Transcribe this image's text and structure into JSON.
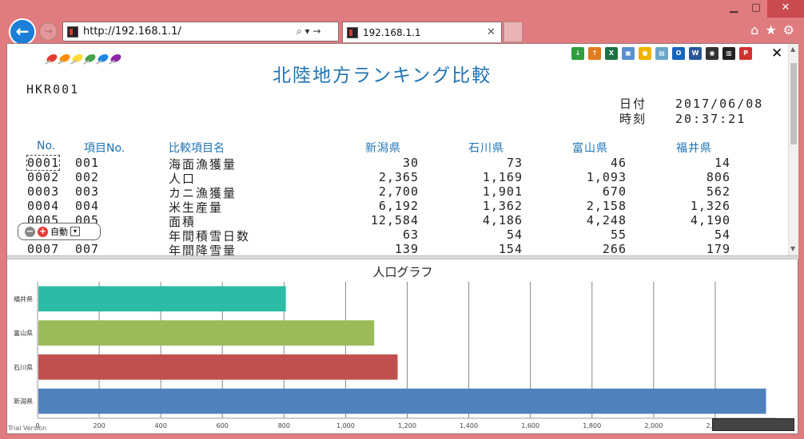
{
  "browser": {
    "minimize": "▁",
    "maximize": "▢",
    "close": "✕",
    "address": "http://192.168.1.1/",
    "address_tools": "⌕ ▾ →",
    "tab_title": "192.168.1.1",
    "tab_close": "✕",
    "nav_icons": [
      "home-icon",
      "star-icon",
      "gear-icon"
    ]
  },
  "report": {
    "title": "北陸地方ランキング比較",
    "id": "HKR001",
    "date_label": "日付",
    "date_value": "2017/06/08",
    "time_label": "時刻",
    "time_value": "20:37:21",
    "close": "✕",
    "toolbar": [
      "download-icon",
      "upload-icon",
      "excel-icon",
      "image-icon",
      "palette-icon",
      "book-icon",
      "outlook-icon",
      "word-icon",
      "camera-icon",
      "print-icon",
      "pdf-icon"
    ],
    "headers": {
      "no": "No.",
      "item_no": "項目No.",
      "name": "比較項目名",
      "c1": "新潟県",
      "c2": "石川県",
      "c3": "富山県",
      "c4": "福井県"
    },
    "rows": [
      {
        "no": "0001",
        "item_no": "001",
        "name": "海面漁獲量",
        "v1": "30",
        "v2": "73",
        "v3": "46",
        "v4": "14"
      },
      {
        "no": "0002",
        "item_no": "002",
        "name": "人口",
        "v1": "2,365",
        "v2": "1,169",
        "v3": "1,093",
        "v4": "806"
      },
      {
        "no": "0003",
        "item_no": "003",
        "name": "カニ漁獲量",
        "v1": "2,700",
        "v2": "1,901",
        "v3": "670",
        "v4": "562"
      },
      {
        "no": "0004",
        "item_no": "004",
        "name": "米生産量",
        "v1": "6,192",
        "v2": "1,362",
        "v3": "2,158",
        "v4": "1,326"
      },
      {
        "no": "0005",
        "item_no": "005",
        "name": "面積",
        "v1": "12,584",
        "v2": "4,186",
        "v3": "4,248",
        "v4": "4,190"
      },
      {
        "no": "0006",
        "item_no": "006",
        "name": "年間積雪日数",
        "v1": "63",
        "v2": "54",
        "v3": "55",
        "v4": "54"
      },
      {
        "no": "0007",
        "item_no": "007",
        "name": "年間降雪量",
        "v1": "139",
        "v2": "154",
        "v3": "266",
        "v4": "179"
      }
    ],
    "zoom_label": "自動"
  },
  "chart_data": {
    "type": "bar",
    "orientation": "horizontal",
    "title": "人口グラフ",
    "categories": [
      "福井県",
      "富山県",
      "石川県",
      "新潟県"
    ],
    "values": [
      806,
      1093,
      1169,
      2365
    ],
    "colors": [
      "#2cbba4",
      "#9bbb59",
      "#c0504d",
      "#4f81bd"
    ],
    "xlim": [
      0,
      2400
    ],
    "xticks": [
      "0",
      "200",
      "400",
      "600",
      "800",
      "1,000",
      "1,200",
      "1,400",
      "1,600",
      "1,800",
      "2,000",
      "2,200"
    ],
    "grid": true,
    "footer": "Trial Version"
  }
}
